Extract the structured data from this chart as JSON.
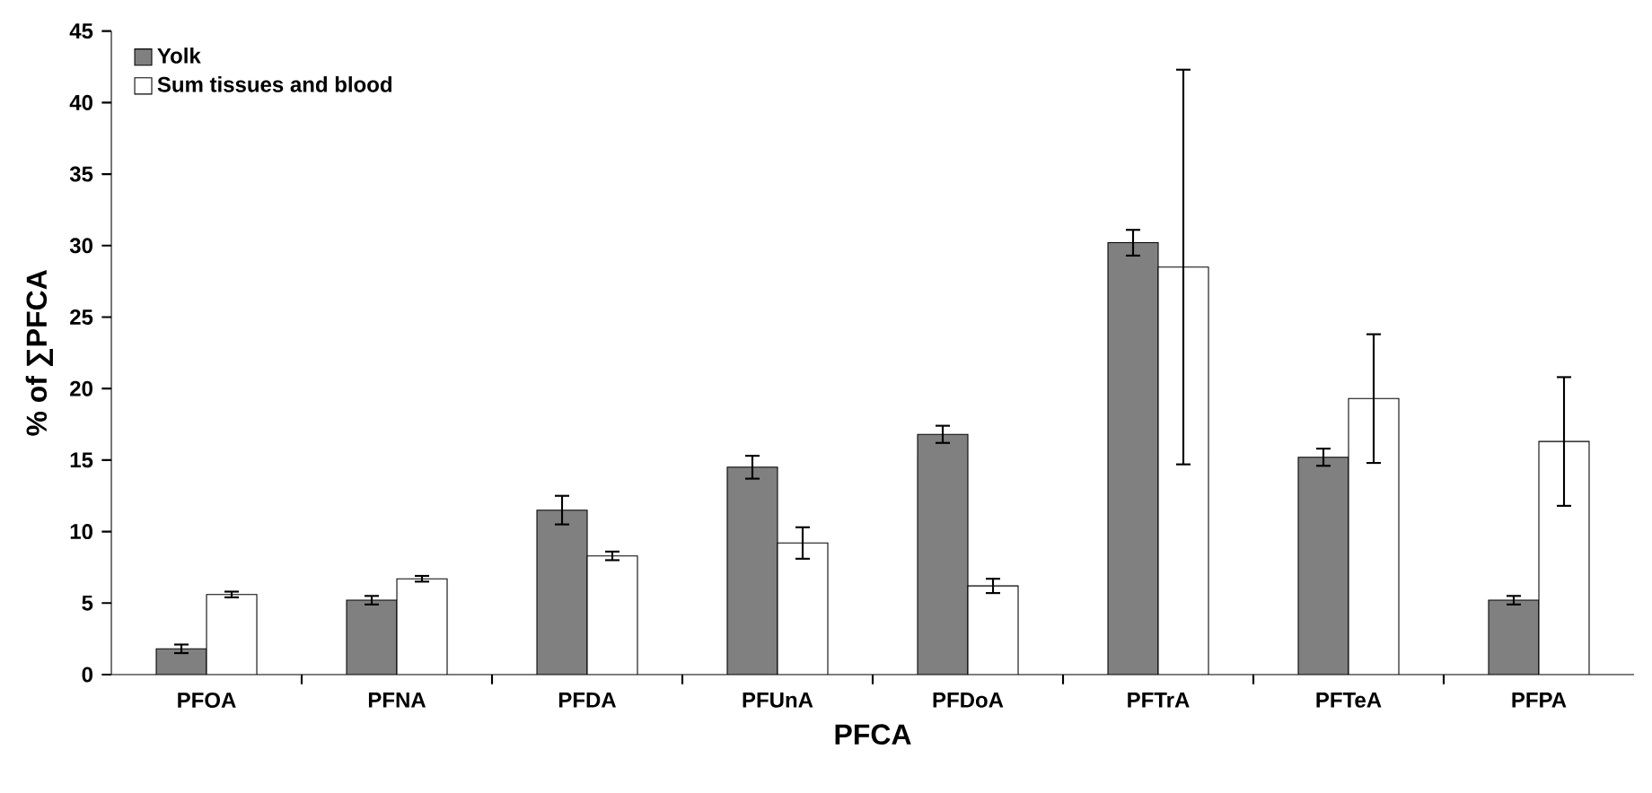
{
  "chart_data": {
    "type": "bar",
    "xlabel": "PFCA",
    "ylabel": "% of ∑PFCA",
    "categories": [
      "PFOA",
      "PFNA",
      "PFDA",
      "PFUnA",
      "PFDoA",
      "PFTrA",
      "PFTeA",
      "PFPA"
    ],
    "series": [
      {
        "name": "Yolk",
        "color": "#808080",
        "values": [
          1.8,
          5.2,
          11.5,
          14.5,
          16.8,
          30.2,
          15.2,
          5.2
        ],
        "errors": [
          0.3,
          0.3,
          1.0,
          0.8,
          0.6,
          0.9,
          0.6,
          0.3
        ]
      },
      {
        "name": "Sum tissues and blood",
        "color": "#ffffff",
        "values": [
          5.6,
          6.7,
          8.3,
          9.2,
          6.2,
          28.5,
          19.3,
          16.3
        ],
        "errors": [
          0.2,
          0.2,
          0.3,
          1.1,
          0.5,
          13.8,
          4.5,
          4.5
        ]
      }
    ],
    "ylim": [
      0,
      45
    ],
    "yticks": [
      0,
      5,
      10,
      15,
      20,
      25,
      30,
      35,
      40,
      45
    ],
    "grid": false,
    "legend": "top left"
  }
}
